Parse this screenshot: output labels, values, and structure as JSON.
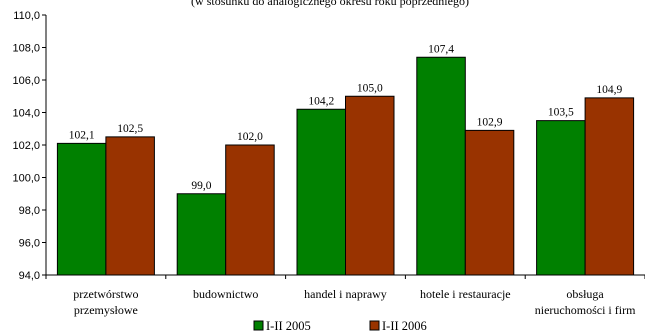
{
  "chart_data": {
    "type": "bar",
    "title": "(w stosunku do analogicznego okresu roku poprzedniego)",
    "categories": [
      [
        "przetwórstwo",
        "przemysłowe"
      ],
      [
        "budownictwo"
      ],
      [
        "handel i naprawy"
      ],
      [
        "hotele i restauracje"
      ],
      [
        "obsługa",
        "nieruchomości i firm"
      ]
    ],
    "series": [
      {
        "name": "I-II 2005",
        "color": "#008000",
        "values": [
          102.1,
          99.0,
          104.2,
          107.4,
          103.5
        ],
        "labels": [
          "102,1",
          "99,0",
          "104,2",
          "107,4",
          "103,5"
        ]
      },
      {
        "name": "I-II 2006",
        "color": "#993300",
        "values": [
          102.5,
          102.0,
          105.0,
          102.9,
          104.9
        ],
        "labels": [
          "102,5",
          "102,0",
          "105,0",
          "102,9",
          "104,9"
        ]
      }
    ],
    "ylim": [
      94.0,
      110.0
    ],
    "yticks": [
      94.0,
      96.0,
      98.0,
      100.0,
      102.0,
      104.0,
      106.0,
      108.0,
      110.0
    ],
    "ytick_labels": [
      "94,0",
      "96,0",
      "98,0",
      "100,0",
      "102,0",
      "104,0",
      "106,0",
      "108,0",
      "110,0"
    ],
    "grid": false,
    "legend_position": "bottom"
  }
}
